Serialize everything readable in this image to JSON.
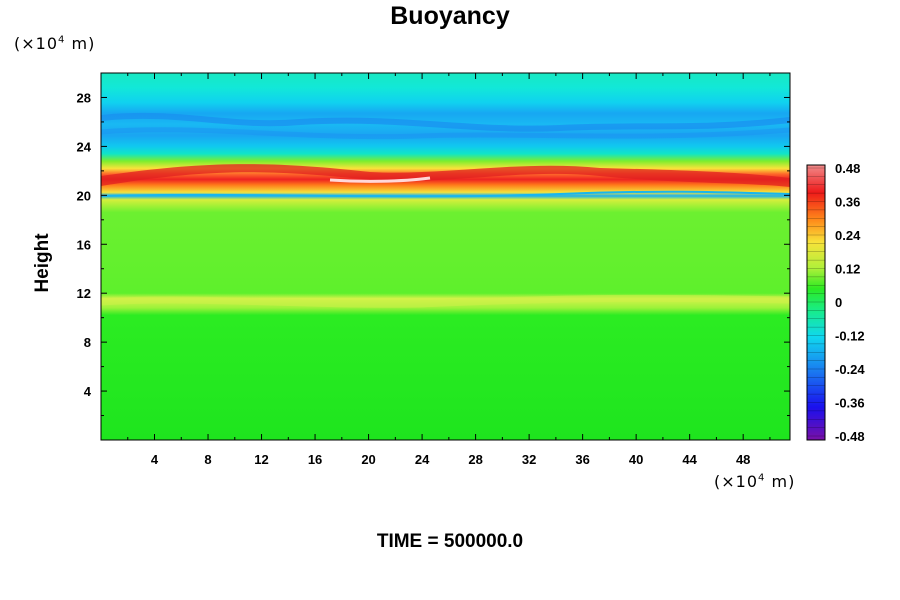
{
  "chart_data": {
    "type": "heatmap",
    "title": "Buoyancy",
    "ylabel": "Height",
    "xlabel": "",
    "x_unit": "(×10⁴ m)",
    "y_unit": "(×10⁴ m)",
    "unit_base": "(×10",
    "unit_exp": "4",
    "unit_tail": " m)",
    "xlim": [
      0,
      51.5
    ],
    "ylim": [
      0,
      30
    ],
    "x_ticks": [
      4,
      8,
      12,
      16,
      20,
      24,
      28,
      32,
      36,
      40,
      44,
      48
    ],
    "y_ticks": [
      4,
      8,
      12,
      16,
      20,
      24,
      28
    ],
    "colorbar": {
      "ticks": [
        0.48,
        0.36,
        0.24,
        0.12,
        0,
        -0.12,
        -0.24,
        -0.36,
        -0.48
      ],
      "tick_labels": [
        "0.48",
        "0.36",
        "0.24",
        "0.12",
        "0",
        "-0.12",
        "-0.24",
        "-0.36",
        "-0.48"
      ],
      "range": [
        -0.48,
        0.48
      ]
    },
    "field_description_by_height": [
      {
        "height": [
          0,
          10.5
        ],
        "value": 0.0
      },
      {
        "height": [
          10.5,
          12
        ],
        "value": 0.08
      },
      {
        "height": [
          12,
          19.5
        ],
        "value": 0.03
      },
      {
        "height": [
          19.5,
          20.2
        ],
        "value": -0.2
      },
      {
        "height": [
          20.2,
          22
        ],
        "value": 0.42
      },
      {
        "height": [
          22,
          23
        ],
        "value": 0.1
      },
      {
        "height": [
          23,
          24.5
        ],
        "value": -0.16
      },
      {
        "height": [
          24.5,
          27
        ],
        "value": -0.2
      },
      {
        "height": [
          27,
          30
        ],
        "value": -0.1
      }
    ],
    "grid": false,
    "legend": "colorbar-right"
  },
  "footer": {
    "time_label": "TIME = 500000.0"
  }
}
